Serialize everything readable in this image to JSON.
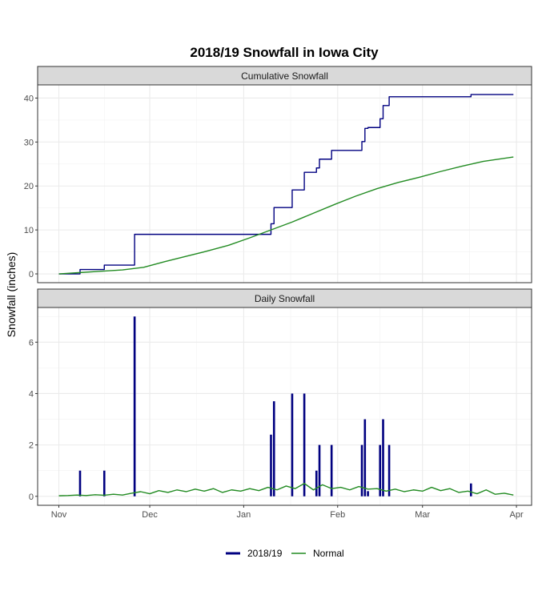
{
  "chart_data": {
    "type": "line",
    "title": "2018/19 Snowfall in Iowa City",
    "ylabel": "Snowfall (inches)",
    "xlabel": "",
    "x_ticks": [
      "Nov",
      "Dec",
      "Jan",
      "Feb",
      "Mar",
      "Apr"
    ],
    "x_tick_dates": [
      "2018-11-01",
      "2018-12-01",
      "2019-01-01",
      "2019-02-01",
      "2019-03-01",
      "2019-04-01"
    ],
    "xlim": [
      "2018-10-25",
      "2019-04-06"
    ],
    "grid": true,
    "legend_position": "bottom",
    "series_styles": {
      "2018/19": {
        "color": "#000080"
      },
      "Normal": {
        "color": "#228b22"
      }
    },
    "legend": [
      {
        "label": "2018/19",
        "color": "#000080"
      },
      {
        "label": "Normal",
        "color": "#228b22"
      }
    ],
    "panels": [
      {
        "strip": "Cumulative Snowfall",
        "type": "line",
        "ylim": [
          -2,
          43
        ],
        "y_ticks": [
          0,
          10,
          20,
          30,
          40
        ],
        "series": [
          {
            "name": "2018/19",
            "step": true,
            "points": [
              [
                "2018-11-01",
                0
              ],
              [
                "2018-11-08",
                1.0
              ],
              [
                "2018-11-16",
                2.0
              ],
              [
                "2018-11-26",
                9.0
              ],
              [
                "2019-01-10",
                11.4
              ],
              [
                "2019-01-11",
                15.1
              ],
              [
                "2019-01-17",
                19.1
              ],
              [
                "2019-01-21",
                23.1
              ],
              [
                "2019-01-25",
                24.1
              ],
              [
                "2019-01-26",
                26.1
              ],
              [
                "2019-01-30",
                28.1
              ],
              [
                "2019-02-09",
                30.1
              ],
              [
                "2019-02-10",
                33.1
              ],
              [
                "2019-02-11",
                33.3
              ],
              [
                "2019-02-15",
                35.3
              ],
              [
                "2019-02-16",
                38.3
              ],
              [
                "2019-02-18",
                40.3
              ],
              [
                "2019-03-17",
                40.8
              ],
              [
                "2019-03-31",
                40.8
              ]
            ]
          },
          {
            "name": "Normal",
            "step": false,
            "points": [
              [
                "2018-11-01",
                0.0
              ],
              [
                "2018-11-08",
                0.3
              ],
              [
                "2018-11-15",
                0.6
              ],
              [
                "2018-11-22",
                0.9
              ],
              [
                "2018-11-29",
                1.5
              ],
              [
                "2018-12-06",
                2.8
              ],
              [
                "2018-12-13",
                4.0
              ],
              [
                "2018-12-20",
                5.2
              ],
              [
                "2018-12-27",
                6.5
              ],
              [
                "2019-01-03",
                8.2
              ],
              [
                "2019-01-10",
                10.0
              ],
              [
                "2019-01-17",
                11.8
              ],
              [
                "2019-01-24",
                13.8
              ],
              [
                "2019-01-31",
                15.8
              ],
              [
                "2019-02-07",
                17.7
              ],
              [
                "2019-02-14",
                19.4
              ],
              [
                "2019-02-21",
                20.8
              ],
              [
                "2019-02-28",
                22.0
              ],
              [
                "2019-03-07",
                23.3
              ],
              [
                "2019-03-14",
                24.5
              ],
              [
                "2019-03-21",
                25.6
              ],
              [
                "2019-03-31",
                26.6
              ]
            ]
          }
        ]
      },
      {
        "strip": "Daily Snowfall",
        "type": "bar",
        "ylim": [
          -0.35,
          7.35
        ],
        "y_ticks": [
          0,
          2,
          4,
          6
        ],
        "series": [
          {
            "name": "2018/19",
            "type": "bar",
            "points": [
              [
                "2018-11-08",
                1.0
              ],
              [
                "2018-11-16",
                1.0
              ],
              [
                "2018-11-26",
                7.0
              ],
              [
                "2019-01-10",
                2.4
              ],
              [
                "2019-01-11",
                3.7
              ],
              [
                "2019-01-17",
                4.0
              ],
              [
                "2019-01-21",
                4.0
              ],
              [
                "2019-01-25",
                1.0
              ],
              [
                "2019-01-26",
                2.0
              ],
              [
                "2019-01-30",
                2.0
              ],
              [
                "2019-02-09",
                2.0
              ],
              [
                "2019-02-10",
                3.0
              ],
              [
                "2019-02-11",
                0.2
              ],
              [
                "2019-02-15",
                2.0
              ],
              [
                "2019-02-16",
                3.0
              ],
              [
                "2019-02-18",
                2.0
              ],
              [
                "2019-03-17",
                0.5
              ]
            ]
          },
          {
            "name": "Normal",
            "type": "line",
            "points": [
              [
                "2018-11-01",
                0.02
              ],
              [
                "2018-11-04",
                0.03
              ],
              [
                "2018-11-07",
                0.05
              ],
              [
                "2018-11-10",
                0.03
              ],
              [
                "2018-11-13",
                0.06
              ],
              [
                "2018-11-16",
                0.04
              ],
              [
                "2018-11-19",
                0.08
              ],
              [
                "2018-11-22",
                0.05
              ],
              [
                "2018-11-25",
                0.12
              ],
              [
                "2018-11-28",
                0.18
              ],
              [
                "2018-12-01",
                0.1
              ],
              [
                "2018-12-04",
                0.22
              ],
              [
                "2018-12-07",
                0.15
              ],
              [
                "2018-12-10",
                0.25
              ],
              [
                "2018-12-13",
                0.18
              ],
              [
                "2018-12-16",
                0.28
              ],
              [
                "2018-12-19",
                0.2
              ],
              [
                "2018-12-22",
                0.3
              ],
              [
                "2018-12-25",
                0.15
              ],
              [
                "2018-12-28",
                0.25
              ],
              [
                "2018-12-31",
                0.2
              ],
              [
                "2019-01-03",
                0.3
              ],
              [
                "2019-01-06",
                0.22
              ],
              [
                "2019-01-09",
                0.35
              ],
              [
                "2019-01-12",
                0.25
              ],
              [
                "2019-01-15",
                0.4
              ],
              [
                "2019-01-18",
                0.3
              ],
              [
                "2019-01-21",
                0.5
              ],
              [
                "2019-01-24",
                0.25
              ],
              [
                "2019-01-27",
                0.45
              ],
              [
                "2019-01-30",
                0.3
              ],
              [
                "2019-02-02",
                0.35
              ],
              [
                "2019-02-05",
                0.25
              ],
              [
                "2019-02-08",
                0.38
              ],
              [
                "2019-02-11",
                0.28
              ],
              [
                "2019-02-14",
                0.3
              ],
              [
                "2019-02-17",
                0.2
              ],
              [
                "2019-02-20",
                0.28
              ],
              [
                "2019-02-23",
                0.18
              ],
              [
                "2019-02-26",
                0.25
              ],
              [
                "2019-03-01",
                0.2
              ],
              [
                "2019-03-04",
                0.35
              ],
              [
                "2019-03-07",
                0.22
              ],
              [
                "2019-03-10",
                0.3
              ],
              [
                "2019-03-13",
                0.15
              ],
              [
                "2019-03-16",
                0.2
              ],
              [
                "2019-03-19",
                0.1
              ],
              [
                "2019-03-22",
                0.25
              ],
              [
                "2019-03-25",
                0.08
              ],
              [
                "2019-03-28",
                0.12
              ],
              [
                "2019-03-31",
                0.05
              ]
            ]
          }
        ]
      }
    ]
  }
}
